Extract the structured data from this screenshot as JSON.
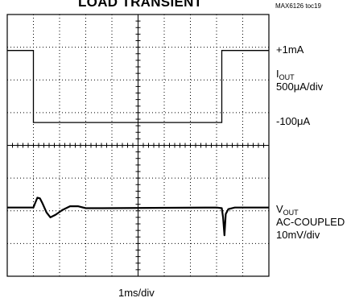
{
  "header": {
    "title": "LOAD TRANSIENT",
    "figure_tag": "MAX6126 toc19"
  },
  "labels": {
    "iout_high": "+1mA",
    "iout_main": "I",
    "iout_sub": "OUT",
    "iout_scale": "500μA/div",
    "iout_low": "-100μA",
    "vout_main": "V",
    "vout_sub": "OUT",
    "vout_coupling": "AC-COUPLED",
    "vout_scale": "10mV/div",
    "x_scale": "1ms/div"
  },
  "colors": {
    "trace": "#000000",
    "grid": "#000000",
    "background": "#ffffff"
  },
  "chart_data": {
    "type": "line",
    "title": "LOAD TRANSIENT",
    "xlabel": "1ms/div",
    "xlim": [
      0,
      10
    ],
    "ylim": [
      -4,
      4
    ],
    "grid": true,
    "series": [
      {
        "name": "IOUT",
        "scale": "500μA/div",
        "values": [
          [
            0,
            2.9
          ],
          [
            1,
            2.9
          ],
          [
            1,
            0.7
          ],
          [
            8.2,
            0.7
          ],
          [
            8.2,
            2.9
          ],
          [
            10,
            2.9
          ]
        ]
      },
      {
        "name": "VOUT",
        "scale": "10mV/div",
        "values": [
          [
            0,
            -1.9
          ],
          [
            1.0,
            -1.9
          ],
          [
            1.05,
            -1.8
          ],
          [
            1.15,
            -1.6
          ],
          [
            1.25,
            -1.62
          ],
          [
            1.35,
            -1.78
          ],
          [
            1.5,
            -2.05
          ],
          [
            1.65,
            -2.2
          ],
          [
            1.85,
            -2.12
          ],
          [
            2.1,
            -1.98
          ],
          [
            2.4,
            -1.86
          ],
          [
            2.7,
            -1.86
          ],
          [
            3.0,
            -1.92
          ],
          [
            3.5,
            -1.92
          ],
          [
            8.0,
            -1.9
          ],
          [
            8.2,
            -1.92
          ],
          [
            8.25,
            -2.2
          ],
          [
            8.3,
            -2.75
          ],
          [
            8.35,
            -2.1
          ],
          [
            8.45,
            -1.95
          ],
          [
            8.7,
            -1.9
          ],
          [
            10,
            -1.9
          ]
        ]
      }
    ]
  }
}
